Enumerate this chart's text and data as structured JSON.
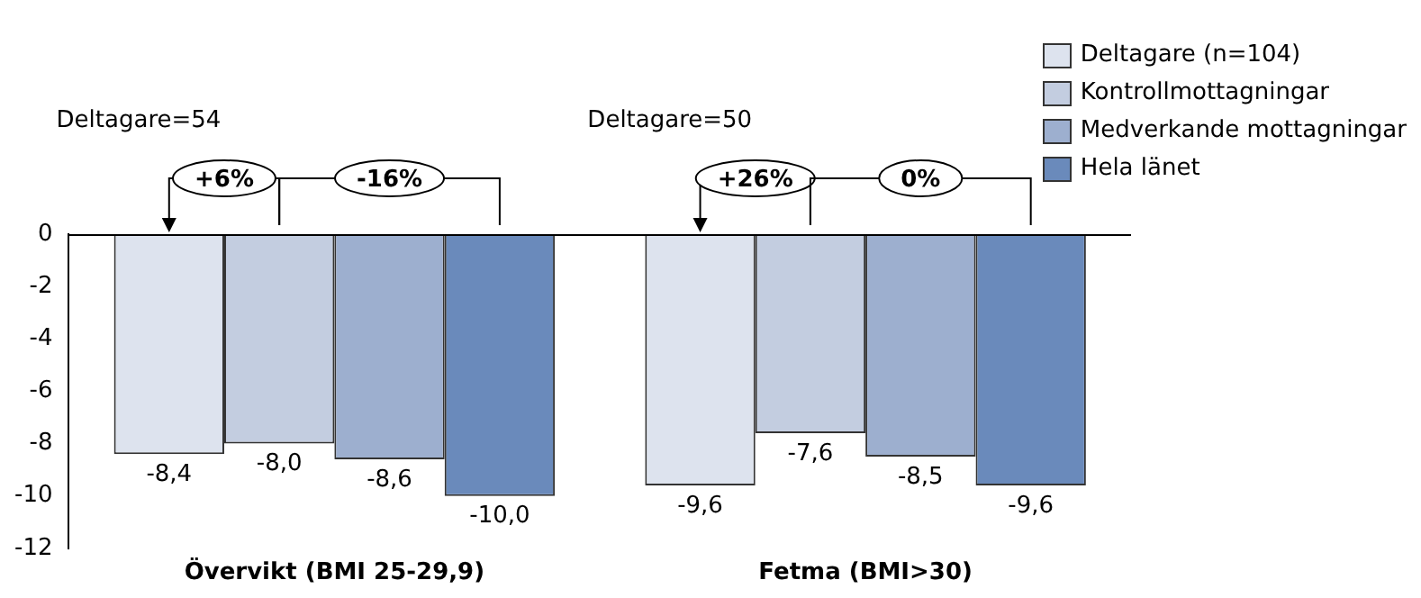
{
  "chart_data": {
    "type": "bar",
    "categories": [
      "Övervikt (BMI 25-29,9)",
      "Fetma (BMI>30)"
    ],
    "series": [
      {
        "name": "Deltagare (n=104)",
        "color": "#dde3ee",
        "values": [
          -8.4,
          -9.6
        ],
        "value_labels": [
          "-8,4",
          "-9,6"
        ]
      },
      {
        "name": "Kontrollmottagningar",
        "color": "#c3cde0",
        "values": [
          -8.0,
          -7.6
        ],
        "value_labels": [
          "-8,0",
          "-7,6"
        ]
      },
      {
        "name": "Medverkande mottagningar",
        "color": "#9dafcf",
        "values": [
          -8.6,
          -8.5
        ],
        "value_labels": [
          "-8,6",
          "-8,5"
        ]
      },
      {
        "name": "Hela länet",
        "color": "#6a8abb",
        "values": [
          -10.0,
          -9.6
        ],
        "value_labels": [
          "-10,0",
          "-9,6"
        ]
      }
    ],
    "ylim": [
      -12,
      0
    ],
    "yticks": [
      0,
      -2,
      -4,
      -6,
      -8,
      -10,
      -12
    ],
    "annotations": [
      "Deltagare=54",
      "Deltagare=50",
      "+6%",
      "-16%",
      "+26%",
      "0%"
    ],
    "grid": false,
    "legend": "top right"
  }
}
